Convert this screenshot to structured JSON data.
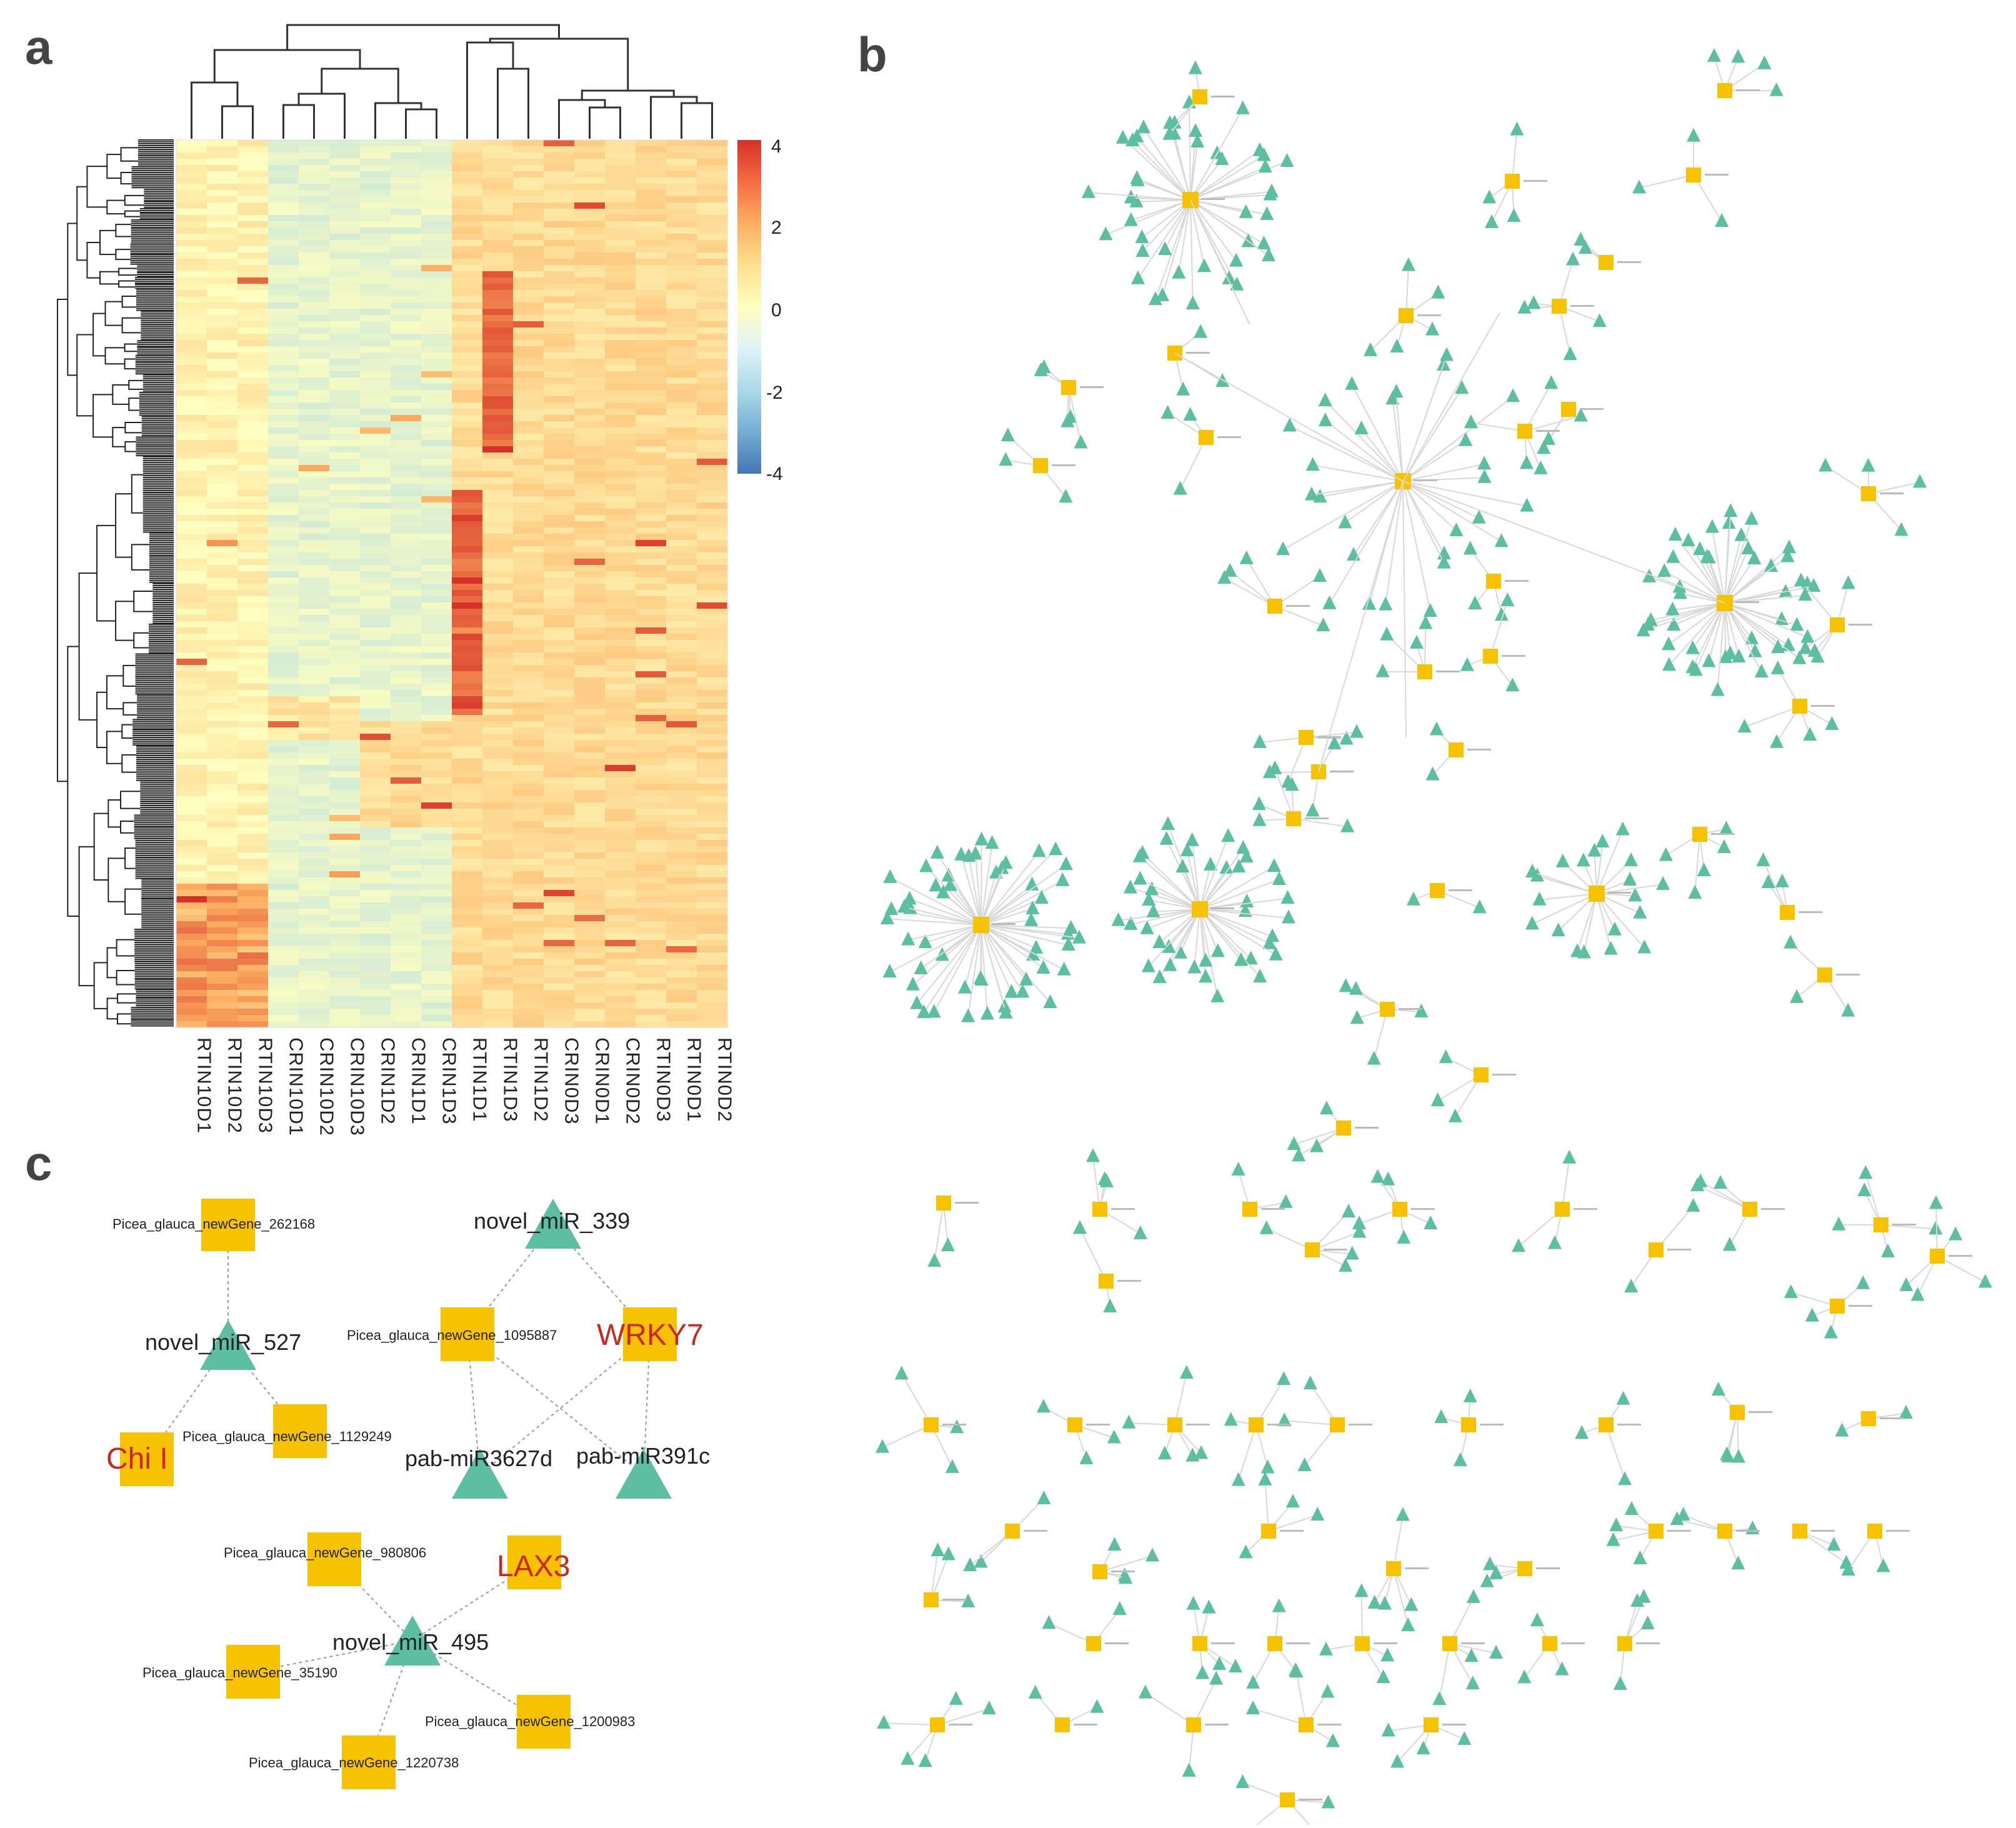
{
  "panels": {
    "a": "a",
    "b": "b",
    "c": "c"
  },
  "heatmap": {
    "scale_ticks": [
      "4",
      "2",
      "0",
      "-2",
      "-4"
    ],
    "scale_colors": [
      "#d73027",
      "#f46d43",
      "#fdae61",
      "#fee090",
      "#ffffbf",
      "#e0f3f8",
      "#abd9e9",
      "#74add1",
      "#4575b4"
    ],
    "columns": [
      "RTIN10D1",
      "RTIN10D2",
      "RTIN10D3",
      "CRIN10D1",
      "CRIN10D2",
      "CRIN10D3",
      "CRIN1D2",
      "CRIN1D1",
      "CRIN1D3",
      "RTIN1D1",
      "RTIN1D3",
      "RTIN1D2",
      "CRIN0D3",
      "CRIN0D1",
      "CRIN0D2",
      "RTIN0D3",
      "RTIN0D1",
      "RTIN0D2"
    ]
  },
  "network_c": {
    "genes": {
      "g262168": "Picea_glauca_newGene_262168",
      "g1095887": "Picea_glauca_newGene_1095887",
      "g1129249": "Picea_glauca_newGene_1129249",
      "g980806": "Picea_glauca_newGene_980806",
      "g35190": "Picea_glauca_newGene_35190",
      "g1200983": "Picea_glauca_newGene_1200983",
      "g1220738": "Picea_glauca_newGene_1220738"
    },
    "mirnas": {
      "m339": "novel_miR_339",
      "m527": "novel_miR_527",
      "m495": "novel_miR_495",
      "m3627d": "pab-miR3627d",
      "m391c": "pab-miR391c"
    },
    "key_genes": {
      "wrky7": "WRKY7",
      "chi": "Chi I",
      "lax3": "LAX3"
    }
  },
  "colors": {
    "gene_node": "#f7c300",
    "mirna_node": "#5cbf9f",
    "edge": "#9a9a9a",
    "key_text": "#c8281e"
  }
}
